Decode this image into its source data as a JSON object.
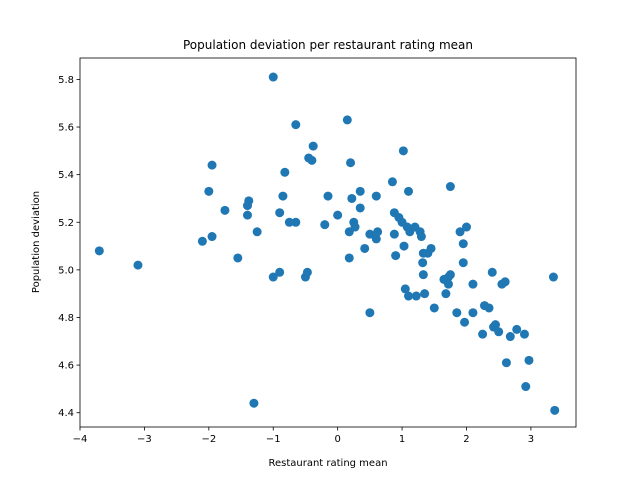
{
  "chart_data": {
    "type": "scatter",
    "title": "Population deviation per restaurant rating mean",
    "xlabel": "Restaurant rating mean",
    "ylabel": "Population deviation",
    "xlim": [
      -4.0,
      3.7
    ],
    "ylim": [
      4.34,
      5.89
    ],
    "xticks": [
      -4,
      -3,
      -2,
      -1,
      0,
      1,
      2,
      3
    ],
    "yticks": [
      4.4,
      4.6,
      4.8,
      5.0,
      5.2,
      5.4,
      5.6,
      5.8
    ],
    "grid": false,
    "color": "#1f77b4",
    "points": [
      [
        -3.7,
        5.08
      ],
      [
        -3.1,
        5.02
      ],
      [
        -2.1,
        5.12
      ],
      [
        -2.0,
        5.33
      ],
      [
        -1.95,
        5.14
      ],
      [
        -1.95,
        5.44
      ],
      [
        -1.75,
        5.25
      ],
      [
        -1.55,
        5.05
      ],
      [
        -1.4,
        5.27
      ],
      [
        -1.38,
        5.29
      ],
      [
        -1.4,
        5.23
      ],
      [
        -1.25,
        5.16
      ],
      [
        -1.3,
        4.44
      ],
      [
        -1.0,
        5.81
      ],
      [
        -1.0,
        4.97
      ],
      [
        -0.9,
        4.99
      ],
      [
        -0.9,
        5.24
      ],
      [
        -0.85,
        5.31
      ],
      [
        -0.82,
        5.41
      ],
      [
        -0.75,
        5.2
      ],
      [
        -0.65,
        5.2
      ],
      [
        -0.65,
        5.61
      ],
      [
        -0.5,
        4.97
      ],
      [
        -0.47,
        4.99
      ],
      [
        -0.45,
        5.47
      ],
      [
        -0.4,
        5.46
      ],
      [
        -0.38,
        5.52
      ],
      [
        -0.2,
        5.19
      ],
      [
        -0.15,
        5.31
      ],
      [
        0.0,
        5.23
      ],
      [
        0.15,
        5.63
      ],
      [
        0.18,
        5.16
      ],
      [
        0.18,
        5.05
      ],
      [
        0.2,
        5.45
      ],
      [
        0.22,
        5.3
      ],
      [
        0.25,
        5.2
      ],
      [
        0.27,
        5.18
      ],
      [
        0.35,
        5.33
      ],
      [
        0.35,
        5.26
      ],
      [
        0.42,
        5.09
      ],
      [
        0.5,
        5.15
      ],
      [
        0.5,
        4.82
      ],
      [
        0.6,
        5.13
      ],
      [
        0.6,
        5.31
      ],
      [
        0.62,
        5.16
      ],
      [
        0.85,
        5.37
      ],
      [
        0.88,
        5.24
      ],
      [
        0.88,
        5.15
      ],
      [
        0.9,
        5.06
      ],
      [
        0.95,
        5.22
      ],
      [
        1.0,
        5.2
      ],
      [
        1.02,
        5.5
      ],
      [
        1.03,
        5.1
      ],
      [
        1.05,
        4.92
      ],
      [
        1.08,
        5.18
      ],
      [
        1.1,
        5.33
      ],
      [
        1.12,
        5.16
      ],
      [
        1.1,
        4.89
      ],
      [
        1.2,
        5.18
      ],
      [
        1.22,
        4.89
      ],
      [
        1.28,
        5.16
      ],
      [
        1.3,
        5.14
      ],
      [
        1.33,
        5.07
      ],
      [
        1.32,
        5.03
      ],
      [
        1.33,
        4.98
      ],
      [
        1.35,
        4.9
      ],
      [
        1.4,
        5.07
      ],
      [
        1.45,
        5.09
      ],
      [
        1.5,
        4.84
      ],
      [
        1.65,
        4.96
      ],
      [
        1.68,
        4.9
      ],
      [
        1.72,
        4.94
      ],
      [
        1.72,
        4.97
      ],
      [
        1.75,
        4.98
      ],
      [
        1.75,
        5.35
      ],
      [
        1.85,
        4.82
      ],
      [
        1.9,
        5.16
      ],
      [
        1.95,
        5.03
      ],
      [
        1.95,
        5.11
      ],
      [
        1.97,
        4.78
      ],
      [
        2.0,
        5.18
      ],
      [
        2.1,
        4.82
      ],
      [
        2.1,
        4.94
      ],
      [
        2.25,
        4.73
      ],
      [
        2.28,
        4.85
      ],
      [
        2.35,
        4.84
      ],
      [
        2.4,
        4.99
      ],
      [
        2.42,
        4.76
      ],
      [
        2.45,
        4.77
      ],
      [
        2.5,
        4.74
      ],
      [
        2.55,
        4.94
      ],
      [
        2.6,
        4.95
      ],
      [
        2.62,
        4.61
      ],
      [
        2.68,
        4.72
      ],
      [
        2.78,
        4.75
      ],
      [
        2.9,
        4.73
      ],
      [
        2.92,
        4.51
      ],
      [
        2.97,
        4.62
      ],
      [
        3.35,
        4.97
      ],
      [
        3.37,
        4.41
      ]
    ]
  }
}
